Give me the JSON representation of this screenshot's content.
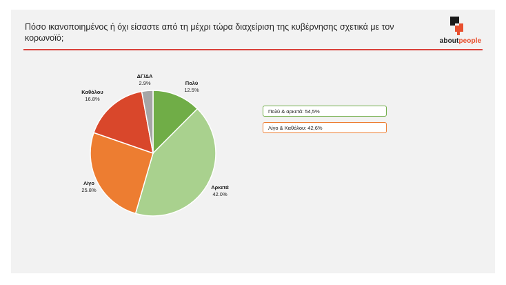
{
  "header": {
    "title": "Πόσο ικανοποιημένος ή όχι είσαστε από τη μέχρι τώρα διαχείριση της κυβέρνησης σχετικά με τον κορωνοϊό;",
    "logo_text_prefix": "about",
    "logo_text_suffix": "people"
  },
  "chart_data": {
    "type": "pie",
    "title": "",
    "start_angle_deg": 0,
    "slices": [
      {
        "label": "Πολύ",
        "value": 12.5,
        "display": "12.5%",
        "color": "#70ad47"
      },
      {
        "label": "Αρκετά",
        "value": 42.0,
        "display": "42.0%",
        "color": "#a9d18e"
      },
      {
        "label": "Λίγο",
        "value": 25.8,
        "display": "25.8%",
        "color": "#ed7d31"
      },
      {
        "label": "Καθόλου",
        "value": 16.8,
        "display": "16.8%",
        "color": "#d9472b"
      },
      {
        "label": "ΔΓ/ΔΑ",
        "value": 2.9,
        "display": "2.9%",
        "color": "#a6a6a6"
      }
    ]
  },
  "summary": [
    {
      "text": "Πολύ & αρκετά: 54,5%",
      "border_color": "#70ad47"
    },
    {
      "text": "Λίγο & Καθόλου: 42,6%",
      "border_color": "#ed7d31"
    }
  ],
  "colors": {
    "accent_rule": "#d9413a",
    "slide_background": "#f2f2f2"
  }
}
